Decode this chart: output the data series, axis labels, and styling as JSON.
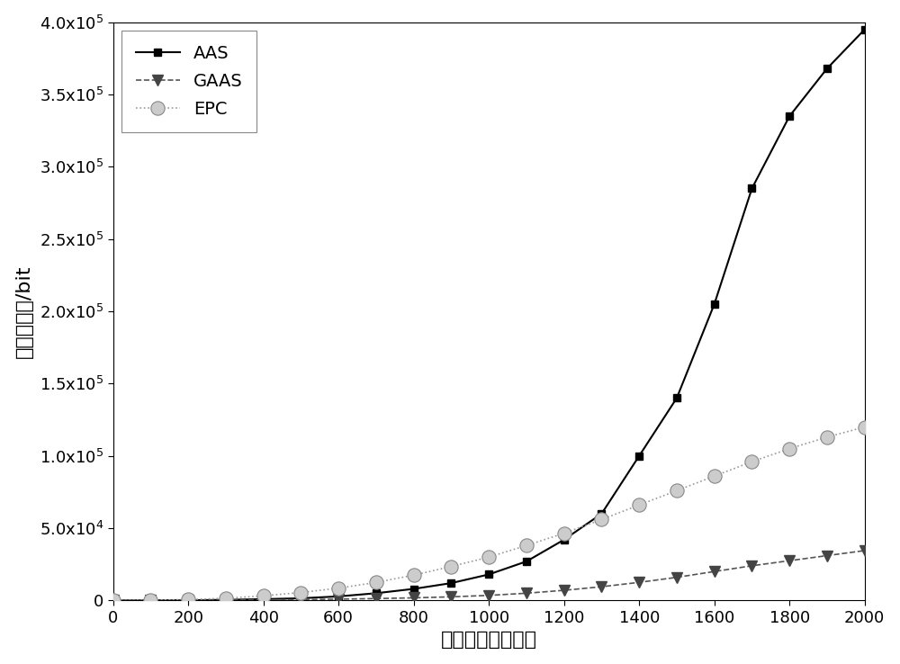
{
  "x": [
    0,
    100,
    200,
    300,
    400,
    500,
    600,
    700,
    800,
    900,
    1000,
    1100,
    1200,
    1300,
    1400,
    1500,
    1600,
    1700,
    1800,
    1900,
    2000
  ],
  "AAS": [
    0,
    50,
    150,
    400,
    900,
    1500,
    2800,
    5000,
    8000,
    12000,
    18000,
    27000,
    42000,
    60000,
    100000,
    140000,
    205000,
    285000,
    335000,
    368000,
    395000
  ],
  "GAAS": [
    0,
    30,
    80,
    180,
    350,
    550,
    900,
    1300,
    1800,
    2500,
    3500,
    5000,
    7000,
    9500,
    12500,
    16000,
    20000,
    24000,
    27500,
    31000,
    34500
  ],
  "EPC": [
    0,
    200,
    600,
    1500,
    3200,
    5500,
    8500,
    12500,
    17500,
    23500,
    30000,
    38000,
    46500,
    56000,
    66000,
    76000,
    86000,
    96000,
    105000,
    113000,
    120000
  ],
  "AAS_color": "#000000",
  "GAAS_color": "#555555",
  "EPC_color": "#999999",
  "xlabel": "待识别标签的数目",
  "ylabel": "标签的开销/bit",
  "xlim": [
    0,
    2000
  ],
  "ylim": [
    0,
    400000
  ],
  "ytick_labels": [
    "0",
    "5.0x10$^4$",
    "1.0x10$^5$",
    "1.5x10$^5$",
    "2.0x10$^5$",
    "2.5x10$^5$",
    "3.0x10$^5$",
    "3.5x10$^5$",
    "4.0x10$^5$"
  ],
  "ytick_vals": [
    0,
    50000,
    100000,
    150000,
    200000,
    250000,
    300000,
    350000,
    400000
  ],
  "xticks": [
    0,
    200,
    400,
    600,
    800,
    1000,
    1200,
    1400,
    1600,
    1800,
    2000
  ],
  "legend_labels": [
    "AAS",
    "GAAS",
    "EPC"
  ],
  "background_color": "#ffffff",
  "label_fontsize": 16,
  "tick_fontsize": 13,
  "legend_fontsize": 14
}
